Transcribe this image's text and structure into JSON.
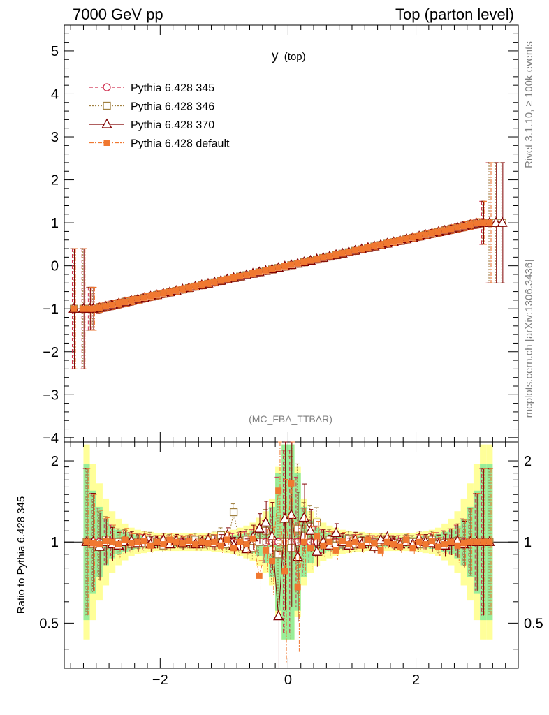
{
  "header": {
    "left": "7000 GeV pp",
    "right": "Top (parton level)"
  },
  "side_labels": {
    "rivet": "Rivet 3.1.10, ≥ 100k events",
    "mcplots": "mcplots.cern.ch [arXiv:1306.3436]"
  },
  "analysis_tag": "(MC_FBA_TTBAR)",
  "chart_data": [
    {
      "type": "line",
      "title": "y",
      "title_sub": "(top)",
      "xlabel": "",
      "ylabel": "",
      "xlim": [
        -3.5,
        3.6
      ],
      "ylim": [
        -4.1,
        5.6
      ],
      "yticks": [
        -4,
        -3,
        -2,
        -1,
        0,
        1,
        2,
        3,
        4,
        5
      ],
      "ytick_labels": [
        "−4",
        "−3",
        "−2",
        "−1",
        "0",
        "1",
        "2",
        "3",
        "4",
        "5"
      ],
      "legend_position": "top-left",
      "series": [
        {
          "name": "Pythia 6.428 345",
          "color": "#d03050",
          "marker": "circle-open",
          "dash": "5,3"
        },
        {
          "name": "Pythia 6.428 346",
          "color": "#a08040",
          "marker": "square-open",
          "dash": "2,2"
        },
        {
          "name": "Pythia 6.428 370",
          "color": "#800000",
          "marker": "triangle-open",
          "dash": ""
        },
        {
          "name": "Pythia 6.428 default",
          "color": "#f07830",
          "marker": "square-filled",
          "dash": "6,2,2,2"
        }
      ],
      "model": "y = clip(x / 3, -1, 1) for each series (top rapidity mean); large errors in edge bins",
      "edge_bins": {
        "left": [
          -3.35,
          -3.2,
          -3.1
        ],
        "right": [
          3.05,
          3.15,
          3.25,
          3.35
        ],
        "right_values": [
          1.0,
          1.0,
          1.0,
          1.0
        ],
        "left_error_up": 1.4,
        "right_error_up": 1.4
      }
    },
    {
      "type": "line",
      "title": "",
      "ylabel": "Ratio to Pythia 6.428 345",
      "xlabel": "",
      "xlim": [
        -3.5,
        3.6
      ],
      "ylim": [
        0.34,
        2.35
      ],
      "scale": "log",
      "yticks": [
        0.5,
        1,
        2
      ],
      "ytick_labels": [
        "0.5",
        "1",
        "2"
      ],
      "xticks": [
        -2,
        0,
        2
      ],
      "xtick_labels": [
        "−2",
        "0",
        "2"
      ],
      "reference": 1.0,
      "band_note": "green = statistical, yellow = total uncertainty of reference",
      "ratio_points": {
        "x": [
          -3.15,
          -3.05,
          -2.95,
          -2.85,
          -2.75,
          -2.65,
          -2.55,
          -2.45,
          -2.35,
          -2.25,
          -2.15,
          -2.05,
          -1.95,
          -1.85,
          -1.75,
          -1.65,
          -1.55,
          -1.45,
          -1.35,
          -1.25,
          -1.15,
          -1.05,
          -0.95,
          -0.85,
          -0.75,
          -0.65,
          -0.55,
          -0.45,
          -0.35,
          -0.25,
          -0.15,
          -0.05,
          0.05,
          0.15,
          0.25,
          0.35,
          0.45,
          0.55,
          0.65,
          0.75,
          0.85,
          0.95,
          1.05,
          1.15,
          1.25,
          1.35,
          1.45,
          1.55,
          1.65,
          1.75,
          1.85,
          1.95,
          2.05,
          2.15,
          2.25,
          2.35,
          2.45,
          2.55,
          2.65,
          2.75,
          2.85,
          2.95,
          3.05,
          3.15
        ],
        "s346": [
          1.0,
          0.98,
          0.97,
          1.02,
          0.99,
          1.0,
          1.01,
          0.98,
          1.0,
          0.99,
          1.02,
          1.0,
          0.97,
          1.01,
          1.0,
          0.98,
          1.0,
          1.02,
          0.98,
          0.99,
          1.03,
          1.06,
          0.98,
          1.29,
          0.96,
          1.02,
          0.95,
          1.0,
          1.1,
          0.93,
          0.9,
          1.0,
          0.95,
          1.12,
          1.05,
          1.14,
          1.18,
          0.98,
          1.02,
          0.97,
          1.0,
          1.03,
          0.98,
          1.01,
          1.0,
          0.97,
          1.0,
          1.02,
          0.99,
          0.98,
          1.01,
          1.0,
          0.98,
          1.0,
          1.02,
          0.98,
          0.99,
          1.0,
          1.01,
          0.99,
          1.0,
          1.0,
          1.0,
          1.0
        ],
        "s370": [
          1.0,
          1.0,
          0.96,
          1.0,
          0.98,
          0.97,
          1.0,
          1.01,
          0.99,
          1.03,
          0.98,
          1.0,
          1.02,
          0.98,
          1.01,
          0.99,
          1.0,
          0.98,
          1.0,
          1.02,
          0.99,
          1.0,
          1.06,
          0.97,
          1.01,
          0.94,
          1.04,
          1.12,
          1.18,
          1.05,
          0.53,
          1.22,
          1.26,
          0.88,
          1.23,
          1.1,
          0.92,
          1.0,
          0.97,
          1.08,
          1.0,
          0.97,
          1.02,
          0.98,
          1.0,
          0.96,
          1.02,
          1.04,
          0.99,
          0.98,
          1.0,
          0.98,
          1.03,
          1.0,
          0.99,
          0.98,
          0.97,
          1.0,
          1.01,
          0.98,
          1.0,
          1.0,
          1.0,
          1.0
        ],
        "sdefault": [
          1.0,
          0.99,
          0.98,
          1.01,
          1.0,
          0.98,
          1.02,
          0.99,
          1.0,
          1.01,
          0.97,
          1.0,
          0.98,
          1.02,
          1.0,
          0.99,
          1.01,
          0.98,
          1.0,
          0.99,
          1.0,
          0.97,
          1.02,
          0.95,
          1.0,
          0.98,
          1.03,
          0.75,
          0.93,
          0.85,
          1.55,
          0.78,
          1.65,
          0.68,
          1.0,
          0.95,
          1.05,
          0.97,
          1.0,
          0.93,
          1.01,
          0.98,
          1.0,
          0.97,
          1.02,
          0.99,
          0.93,
          1.0,
          0.98,
          0.96,
          1.02,
          0.95,
          1.0,
          0.98,
          1.01,
          0.96,
          0.98,
          1.0,
          0.97,
          0.99,
          1.0,
          1.0,
          1.0,
          1.0
        ],
        "band_stat": [
          1.95,
          1.55,
          1.35,
          1.22,
          1.15,
          1.11,
          1.09,
          1.07,
          1.06,
          1.05,
          1.05,
          1.04,
          1.04,
          1.04,
          1.04,
          1.04,
          1.04,
          1.04,
          1.04,
          1.04,
          1.05,
          1.05,
          1.05,
          1.06,
          1.07,
          1.08,
          1.1,
          1.13,
          1.2,
          1.35,
          1.8,
          2.3,
          2.3,
          1.8,
          1.35,
          1.2,
          1.13,
          1.1,
          1.08,
          1.07,
          1.06,
          1.05,
          1.05,
          1.05,
          1.04,
          1.04,
          1.04,
          1.04,
          1.04,
          1.04,
          1.04,
          1.04,
          1.05,
          1.05,
          1.06,
          1.07,
          1.09,
          1.11,
          1.15,
          1.22,
          1.35,
          1.55,
          1.95,
          1.95
        ],
        "band_total": [
          2.3,
          1.95,
          1.65,
          1.45,
          1.3,
          1.22,
          1.17,
          1.13,
          1.11,
          1.1,
          1.09,
          1.08,
          1.08,
          1.08,
          1.08,
          1.08,
          1.08,
          1.08,
          1.08,
          1.08,
          1.09,
          1.09,
          1.1,
          1.11,
          1.13,
          1.15,
          1.18,
          1.23,
          1.3,
          1.45,
          1.9,
          2.3,
          2.3,
          1.9,
          1.45,
          1.3,
          1.23,
          1.18,
          1.15,
          1.13,
          1.11,
          1.1,
          1.09,
          1.09,
          1.08,
          1.08,
          1.08,
          1.08,
          1.08,
          1.08,
          1.08,
          1.08,
          1.09,
          1.1,
          1.11,
          1.13,
          1.17,
          1.22,
          1.3,
          1.45,
          1.65,
          1.95,
          2.3,
          2.3
        ]
      }
    }
  ]
}
